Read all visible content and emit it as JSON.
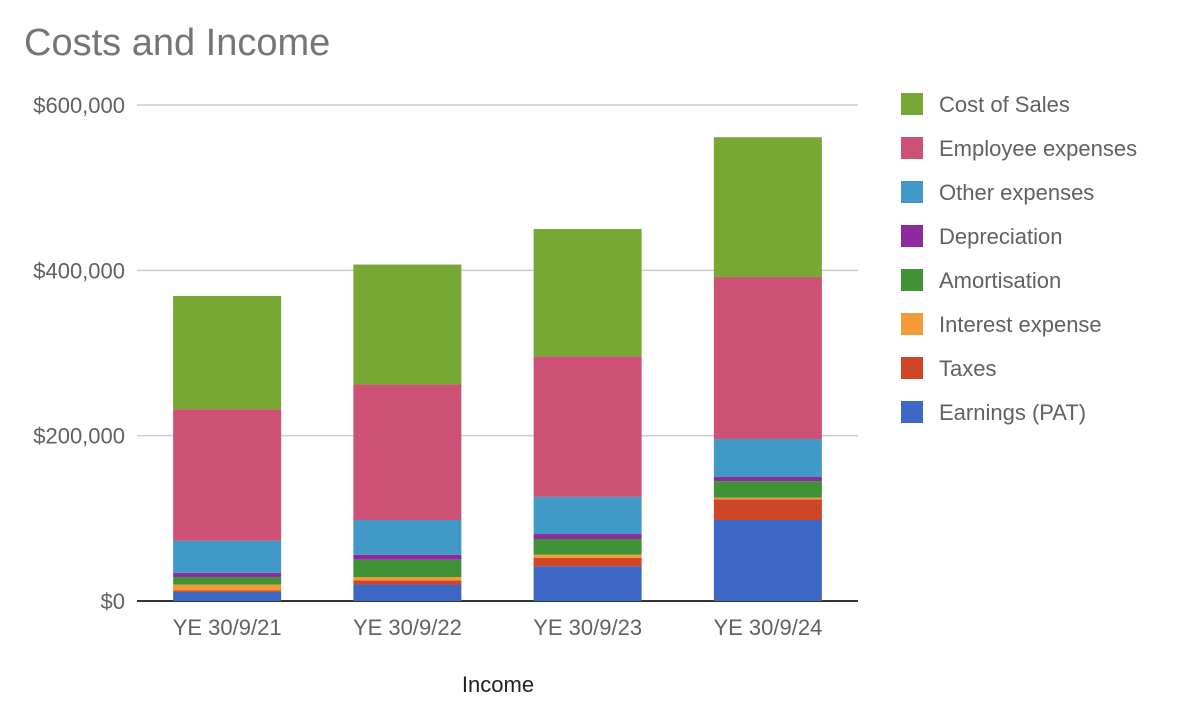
{
  "chart_data": {
    "type": "bar",
    "stacked": true,
    "title": "Costs and Income",
    "xlabel": "Income",
    "ylabel": "",
    "ylim": [
      0,
      600000
    ],
    "yticks": [
      0,
      200000,
      400000,
      600000
    ],
    "ytick_labels": [
      "$0",
      "$200,000",
      "$400,000",
      "$600,000"
    ],
    "grid": true,
    "legend_position": "right",
    "categories": [
      "YE 30/9/21",
      "YE 30/9/22",
      "YE 30/9/23",
      "YE 30/9/24"
    ],
    "series": [
      {
        "name": "Earnings (PAT)",
        "color": "#3d67c5",
        "values": [
          11000,
          20000,
          42000,
          98000
        ]
      },
      {
        "name": "Taxes",
        "color": "#ce4527",
        "values": [
          2000,
          5000,
          10000,
          25000
        ]
      },
      {
        "name": "Interest expense",
        "color": "#f19c38",
        "values": [
          7000,
          4000,
          4000,
          2000
        ]
      },
      {
        "name": "Amortisation",
        "color": "#3f9336",
        "values": [
          9000,
          21000,
          19000,
          20000
        ]
      },
      {
        "name": "Depreciation",
        "color": "#8d2aa0",
        "values": [
          5000,
          6000,
          6000,
          5000
        ]
      },
      {
        "name": "Other expenses",
        "color": "#4199c7",
        "values": [
          39000,
          42000,
          45000,
          46000
        ]
      },
      {
        "name": "Employee expenses",
        "color": "#cd5075",
        "values": [
          159000,
          164000,
          170000,
          196000
        ]
      },
      {
        "name": "Cost of Sales",
        "color": "#76a833",
        "values": [
          137000,
          145000,
          154000,
          169000
        ]
      }
    ],
    "legend_order": [
      "Cost of Sales",
      "Employee expenses",
      "Other expenses",
      "Depreciation",
      "Amortisation",
      "Interest expense",
      "Taxes",
      "Earnings (PAT)"
    ]
  }
}
